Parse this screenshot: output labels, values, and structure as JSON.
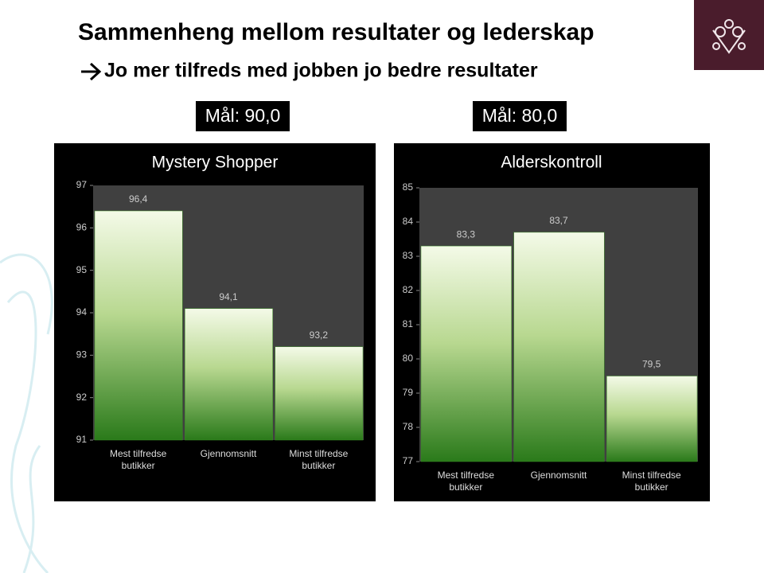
{
  "title": "Sammenheng mellom resultater og lederskap",
  "subtitle": "Jo mer tilfreds med jobben jo bedre resultater",
  "chart_data": [
    {
      "type": "bar",
      "title": "Mystery Shopper",
      "annotation": "Mål: 90,0",
      "categories": [
        "Mest tilfredse butikker",
        "Gjennomsnitt",
        "Minst tilfredse butikker"
      ],
      "values": [
        96.4,
        94.1,
        93.2
      ],
      "value_labels": [
        "96,4",
        "94,1",
        "93,2"
      ],
      "color": "#3a8a25",
      "ylim": [
        91,
        97
      ],
      "yticks": [
        91,
        92,
        93,
        94,
        95,
        96,
        97
      ],
      "grid": false
    },
    {
      "type": "bar",
      "title": "Alderskontroll",
      "annotation": "Mål: 80,0",
      "categories": [
        "Mest tilfredse butikker",
        "Gjennomsnitt",
        "Minst tilfredse butikker"
      ],
      "values": [
        83.3,
        83.7,
        79.5
      ],
      "value_labels": [
        "83,3",
        "83,7",
        "79,5"
      ],
      "color": "#3a8a25",
      "ylim": [
        77,
        85
      ],
      "yticks": [
        77,
        78,
        79,
        80,
        81,
        82,
        83,
        84,
        85
      ],
      "grid": false
    }
  ]
}
